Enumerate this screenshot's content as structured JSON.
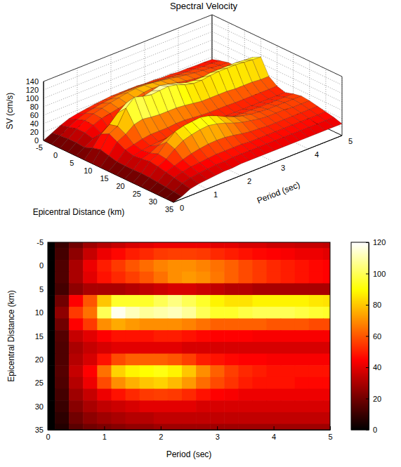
{
  "chart_data": [
    {
      "type": "surface",
      "title": "Spectral Velocity",
      "xlabel": "Epicentral Distance (km)",
      "ylabel": "Period (sec)",
      "zlabel": "SV (cm/s)",
      "x": [
        -5,
        -2.5,
        0,
        2.5,
        5,
        7.5,
        10,
        12.5,
        15,
        17.5,
        20,
        22.5,
        25,
        27.5,
        30,
        32.5,
        35
      ],
      "y": [
        0,
        0.25,
        0.5,
        0.75,
        1,
        1.25,
        1.5,
        1.75,
        2,
        2.25,
        2.5,
        2.75,
        3,
        3.25,
        3.5,
        3.75,
        4,
        4.25,
        4.5,
        4.75,
        5
      ],
      "z": [
        [
          0,
          10,
          20,
          28,
          32,
          35,
          38,
          40,
          42,
          42,
          42,
          42,
          40,
          40,
          38,
          38,
          36,
          36,
          35,
          35,
          34
        ],
        [
          0,
          12,
          25,
          35,
          42,
          46,
          50,
          52,
          55,
          56,
          56,
          55,
          52,
          50,
          48,
          46,
          45,
          44,
          42,
          42,
          40
        ],
        [
          0,
          14,
          30,
          42,
          50,
          55,
          60,
          64,
          68,
          70,
          70,
          68,
          65,
          62,
          58,
          55,
          52,
          50,
          48,
          46,
          45
        ],
        [
          0,
          14,
          30,
          40,
          48,
          52,
          56,
          60,
          65,
          70,
          72,
          70,
          66,
          62,
          58,
          55,
          52,
          50,
          48,
          46,
          45
        ],
        [
          0,
          12,
          25,
          30,
          30,
          30,
          32,
          34,
          36,
          38,
          38,
          36,
          34,
          32,
          32,
          30,
          30,
          30,
          30,
          30,
          30
        ],
        [
          0,
          20,
          45,
          60,
          80,
          95,
          95,
          95,
          100,
          105,
          100,
          95,
          88,
          85,
          85,
          88,
          88,
          88,
          88,
          86,
          85
        ],
        [
          0,
          25,
          55,
          65,
          100,
          118,
          112,
          108,
          110,
          112,
          108,
          100,
          95,
          95,
          98,
          100,
          100,
          100,
          98,
          96,
          95
        ],
        [
          0,
          20,
          45,
          55,
          70,
          75,
          72,
          70,
          70,
          70,
          68,
          65,
          62,
          62,
          62,
          62,
          60,
          60,
          60,
          58,
          58
        ],
        [
          0,
          15,
          35,
          40,
          45,
          48,
          48,
          48,
          50,
          50,
          48,
          46,
          45,
          45,
          45,
          44,
          44,
          44,
          44,
          44,
          44
        ],
        [
          0,
          14,
          30,
          35,
          38,
          40,
          40,
          40,
          40,
          40,
          38,
          38,
          38,
          38,
          38,
          38,
          38,
          38,
          38,
          38,
          38
        ],
        [
          0,
          14,
          32,
          38,
          48,
          58,
          62,
          62,
          62,
          60,
          56,
          50,
          48,
          46,
          45,
          45,
          44,
          44,
          44,
          44,
          44
        ],
        [
          0,
          15,
          35,
          45,
          65,
          82,
          88,
          90,
          92,
          88,
          80,
          70,
          62,
          56,
          52,
          50,
          48,
          48,
          48,
          48,
          48
        ],
        [
          0,
          14,
          32,
          42,
          58,
          70,
          76,
          80,
          82,
          78,
          72,
          64,
          58,
          54,
          50,
          48,
          48,
          48,
          46,
          46,
          46
        ],
        [
          0,
          12,
          28,
          35,
          42,
          48,
          52,
          55,
          56,
          55,
          52,
          48,
          45,
          44,
          42,
          42,
          42,
          42,
          42,
          42,
          42
        ],
        [
          0,
          10,
          24,
          30,
          34,
          36,
          38,
          40,
          40,
          40,
          40,
          38,
          38,
          38,
          38,
          38,
          38,
          38,
          38,
          38,
          38
        ],
        [
          0,
          8,
          20,
          25,
          28,
          30,
          32,
          32,
          34,
          34,
          34,
          34,
          34,
          34,
          34,
          34,
          34,
          34,
          34,
          34,
          34
        ],
        [
          0,
          6,
          16,
          20,
          22,
          24,
          26,
          26,
          28,
          28,
          28,
          28,
          28,
          28,
          28,
          28,
          28,
          28,
          28,
          28,
          28
        ]
      ],
      "xlim": [
        -5,
        35
      ],
      "xticks": [
        -5,
        0,
        5,
        10,
        15,
        20,
        25,
        30,
        35
      ],
      "ylim": [
        0,
        5
      ],
      "yticks": [
        0,
        1,
        2,
        3,
        4,
        5
      ],
      "zlim": [
        0,
        140
      ],
      "zticks": [
        0,
        20,
        40,
        60,
        80,
        100,
        120,
        140
      ],
      "grid": true
    },
    {
      "type": "heatmap",
      "xlabel": "Period (sec)",
      "ylabel": "Epicentral Distance (km)",
      "x": [
        0,
        0.25,
        0.5,
        0.75,
        1,
        1.25,
        1.5,
        1.75,
        2,
        2.25,
        2.5,
        2.75,
        3,
        3.25,
        3.5,
        3.75,
        4,
        4.25,
        4.5,
        4.75,
        5
      ],
      "y": [
        -5,
        -2.5,
        0,
        2.5,
        5,
        7.5,
        10,
        12.5,
        15,
        17.5,
        20,
        22.5,
        25,
        27.5,
        30,
        32.5,
        35
      ],
      "z": [
        [
          0,
          10,
          20,
          28,
          32,
          35,
          38,
          40,
          42,
          42,
          42,
          42,
          40,
          40,
          38,
          38,
          36,
          36,
          35,
          35,
          34
        ],
        [
          0,
          12,
          25,
          35,
          42,
          46,
          50,
          52,
          55,
          56,
          56,
          55,
          52,
          50,
          48,
          46,
          45,
          44,
          42,
          42,
          40
        ],
        [
          0,
          14,
          30,
          42,
          50,
          55,
          60,
          64,
          68,
          70,
          70,
          68,
          65,
          62,
          58,
          55,
          52,
          50,
          48,
          46,
          45
        ],
        [
          0,
          14,
          30,
          40,
          48,
          52,
          56,
          60,
          65,
          70,
          72,
          70,
          66,
          62,
          58,
          55,
          52,
          50,
          48,
          46,
          45
        ],
        [
          0,
          12,
          25,
          30,
          30,
          30,
          32,
          34,
          36,
          38,
          38,
          36,
          34,
          32,
          32,
          30,
          30,
          30,
          30,
          30,
          30
        ],
        [
          0,
          20,
          45,
          60,
          80,
          95,
          95,
          95,
          100,
          105,
          100,
          95,
          88,
          85,
          85,
          88,
          88,
          88,
          88,
          86,
          85
        ],
        [
          0,
          25,
          55,
          65,
          100,
          118,
          112,
          108,
          110,
          112,
          108,
          100,
          95,
          95,
          98,
          100,
          100,
          100,
          98,
          96,
          95
        ],
        [
          0,
          20,
          45,
          55,
          70,
          75,
          72,
          70,
          70,
          70,
          68,
          65,
          62,
          62,
          62,
          62,
          60,
          60,
          60,
          58,
          58
        ],
        [
          0,
          15,
          35,
          40,
          45,
          48,
          48,
          48,
          50,
          50,
          48,
          46,
          45,
          45,
          45,
          44,
          44,
          44,
          44,
          44,
          44
        ],
        [
          0,
          14,
          30,
          35,
          38,
          40,
          40,
          40,
          40,
          40,
          38,
          38,
          38,
          38,
          38,
          38,
          38,
          38,
          38,
          38,
          38
        ],
        [
          0,
          14,
          32,
          38,
          48,
          58,
          62,
          62,
          62,
          60,
          56,
          50,
          48,
          46,
          45,
          45,
          44,
          44,
          44,
          44,
          44
        ],
        [
          0,
          15,
          35,
          45,
          65,
          82,
          88,
          90,
          92,
          88,
          80,
          70,
          62,
          56,
          52,
          50,
          48,
          48,
          48,
          48,
          48
        ],
        [
          0,
          14,
          32,
          42,
          58,
          70,
          76,
          80,
          82,
          78,
          72,
          64,
          58,
          54,
          50,
          48,
          48,
          48,
          46,
          46,
          46
        ],
        [
          0,
          12,
          28,
          35,
          42,
          48,
          52,
          55,
          56,
          55,
          52,
          48,
          45,
          44,
          42,
          42,
          42,
          42,
          42,
          42,
          42
        ],
        [
          0,
          10,
          24,
          30,
          34,
          36,
          38,
          40,
          40,
          40,
          40,
          38,
          38,
          38,
          38,
          38,
          38,
          38,
          38,
          38,
          38
        ],
        [
          0,
          8,
          20,
          25,
          28,
          30,
          32,
          32,
          34,
          34,
          34,
          34,
          34,
          34,
          34,
          34,
          34,
          34,
          34,
          34,
          34
        ],
        [
          0,
          6,
          16,
          20,
          22,
          24,
          26,
          26,
          28,
          28,
          28,
          28,
          28,
          28,
          28,
          28,
          28,
          28,
          28,
          28,
          28
        ]
      ],
      "xlim": [
        0,
        5
      ],
      "xticks": [
        0,
        1,
        2,
        3,
        4,
        5
      ],
      "ylim": [
        -5,
        35
      ],
      "yticks": [
        -5,
        0,
        5,
        10,
        15,
        20,
        25,
        30,
        35
      ],
      "colorbar": {
        "range": [
          0,
          120
        ],
        "ticks": [
          0,
          20,
          40,
          60,
          80,
          100,
          120
        ]
      }
    }
  ]
}
